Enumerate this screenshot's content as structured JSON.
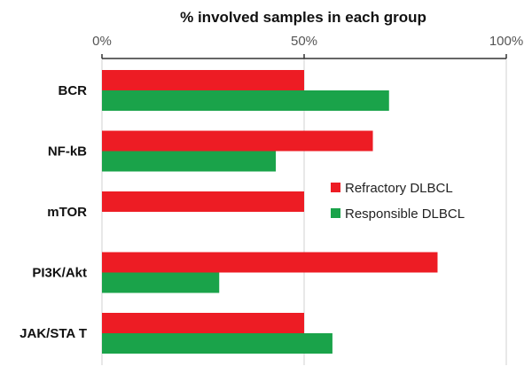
{
  "chart_data": {
    "type": "bar",
    "orientation": "horizontal",
    "title": "% involved samples in each group",
    "xlabel": "",
    "ylabel": "",
    "xlim": [
      0,
      100
    ],
    "x_ticks": [
      0,
      50,
      100
    ],
    "x_tick_labels": [
      "0%",
      "50%",
      "100%"
    ],
    "grid": true,
    "legend_position": "right",
    "categories": [
      "BCR",
      "NF-kB",
      "mTOR",
      "PI3K/Akt",
      "JAK/STA T"
    ],
    "series": [
      {
        "name": "Refractory DLBCL",
        "color": "#ed1c24",
        "values": [
          50,
          67,
          50,
          83,
          50
        ]
      },
      {
        "name": "Responsible DLBCL",
        "color": "#1aa34a",
        "values": [
          71,
          43,
          0,
          29,
          57
        ]
      }
    ]
  }
}
